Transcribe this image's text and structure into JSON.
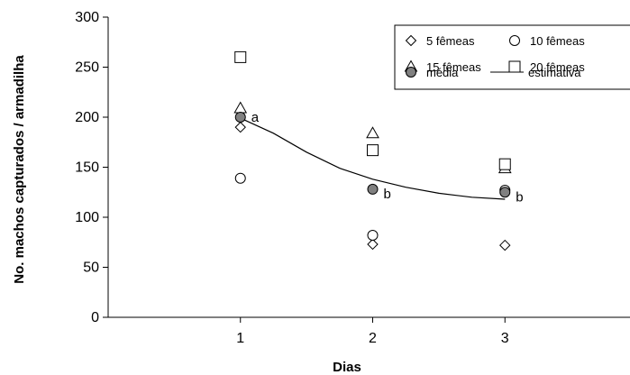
{
  "chart_data": {
    "type": "scatter",
    "xlabel": "Dias",
    "ylabel": "No. machos capturados / armadilha",
    "xlim": [
      0,
      4
    ],
    "ylim": [
      0,
      300
    ],
    "xticks": [
      1,
      2,
      3
    ],
    "yticks": [
      0,
      50,
      100,
      150,
      200,
      250,
      300
    ],
    "grid": false,
    "legend_position": "top-right",
    "series": [
      {
        "name": "5 fêmeas",
        "marker": "diamond",
        "fill": "#ffffff",
        "points": [
          {
            "x": 1,
            "y": 190
          },
          {
            "x": 2,
            "y": 73
          },
          {
            "x": 3,
            "y": 72
          }
        ]
      },
      {
        "name": "10 fêmeas",
        "marker": "circle",
        "fill": "#ffffff",
        "points": [
          {
            "x": 1,
            "y": 139
          },
          {
            "x": 2,
            "y": 82
          },
          {
            "x": 3,
            "y": 127
          }
        ]
      },
      {
        "name": "15 fêmeas",
        "marker": "triangle",
        "fill": "#ffffff",
        "points": [
          {
            "x": 1,
            "y": 209
          },
          {
            "x": 2,
            "y": 184
          },
          {
            "x": 3,
            "y": 149
          }
        ]
      },
      {
        "name": "20 fêmeas",
        "marker": "square",
        "fill": "#ffffff",
        "points": [
          {
            "x": 1,
            "y": 260
          },
          {
            "x": 2,
            "y": 167
          },
          {
            "x": 3,
            "y": 153
          }
        ]
      },
      {
        "name": "média",
        "marker": "circle",
        "fill": "#808080",
        "points": [
          {
            "x": 1,
            "y": 200,
            "label": "a"
          },
          {
            "x": 2,
            "y": 128,
            "label": "b"
          },
          {
            "x": 3,
            "y": 125,
            "label": "b"
          }
        ]
      }
    ],
    "line": {
      "name": "estimativa",
      "points": [
        {
          "x": 1,
          "y": 199
        },
        {
          "x": 1.25,
          "y": 184
        },
        {
          "x": 1.5,
          "y": 165
        },
        {
          "x": 1.75,
          "y": 149
        },
        {
          "x": 2,
          "y": 138
        },
        {
          "x": 2.25,
          "y": 130
        },
        {
          "x": 2.5,
          "y": 124
        },
        {
          "x": 2.75,
          "y": 120
        },
        {
          "x": 3,
          "y": 118
        }
      ]
    }
  },
  "legend": {
    "items": [
      {
        "label": "5 fêmeas",
        "marker": "diamond",
        "fill": "#ffffff"
      },
      {
        "label": "10 fêmeas",
        "marker": "circle",
        "fill": "#ffffff"
      },
      {
        "label": "15 fêmeas",
        "marker": "triangle",
        "fill": "#ffffff"
      },
      {
        "label": "20 fêmeas",
        "marker": "square",
        "fill": "#ffffff"
      },
      {
        "label": "média",
        "marker": "circle",
        "fill": "#808080"
      },
      {
        "label": "estimativa",
        "marker": "line",
        "fill": "none"
      }
    ]
  }
}
